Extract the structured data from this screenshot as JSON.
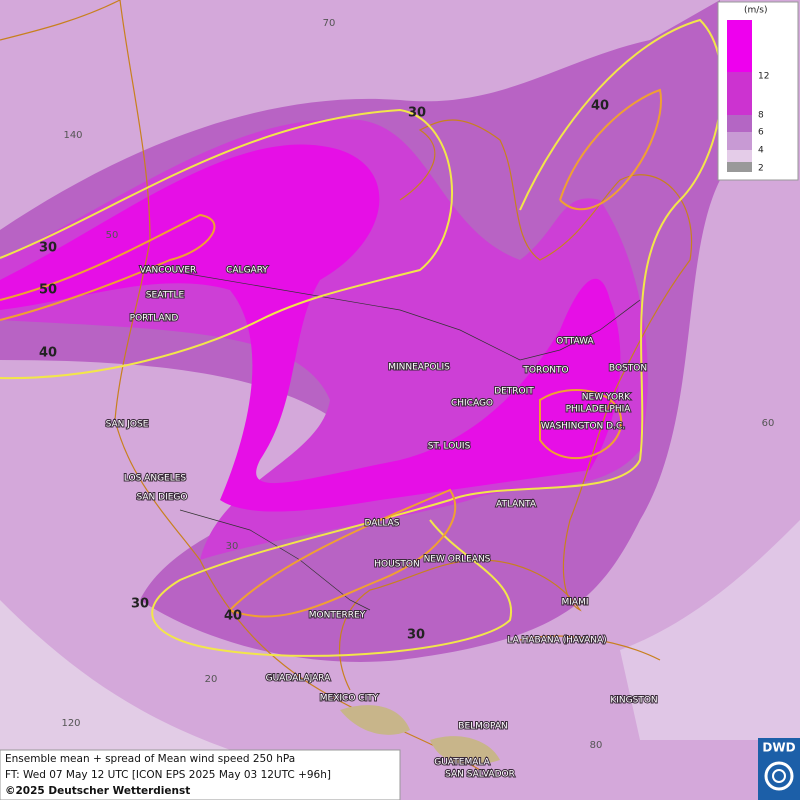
{
  "map": {
    "cities": [
      "VANCOUVER",
      "CALGARY",
      "SEATTLE",
      "PORTLAND",
      "MINNEAPOLIS",
      "OTTAWA",
      "TORONTO",
      "BOSTON",
      "DETROIT",
      "CHICAGO",
      "NEW YORK",
      "PHILADELPHIA",
      "WASHINGTON D.C.",
      "SAN JOSE",
      "ST. LOUIS",
      "LOS ANGELES",
      "SAN DIEGO",
      "ATLANTA",
      "DALLAS",
      "HOUSTON",
      "NEW ORLEANS",
      "MONTERREY",
      "MIAMI",
      "LA HABANA (HAVANA)",
      "GUADALAJARA",
      "MEXICO CITY",
      "KINGSTON",
      "BELMOPAN",
      "GUATEMALA",
      "SAN SALVADOR"
    ],
    "contour_labels": [
      "30",
      "40",
      "30",
      "50",
      "40",
      "30",
      "40",
      "30"
    ],
    "grid_labels": [
      "70",
      "140",
      "50",
      "60",
      "20",
      "120",
      "80",
      "30"
    ]
  },
  "legend": {
    "unit": "(m/s)",
    "ticks": [
      "12",
      "8",
      "6",
      "4",
      "2"
    ]
  },
  "footer": {
    "line1": "Ensemble mean + spread of Mean wind speed 250 hPa",
    "line2": "FT: Wed 07 May 12 UTC [ICON EPS 2025 May 03 12UTC +96h]",
    "line3": "©2025 Deutscher Wetterdienst"
  },
  "logo": "DWD"
}
